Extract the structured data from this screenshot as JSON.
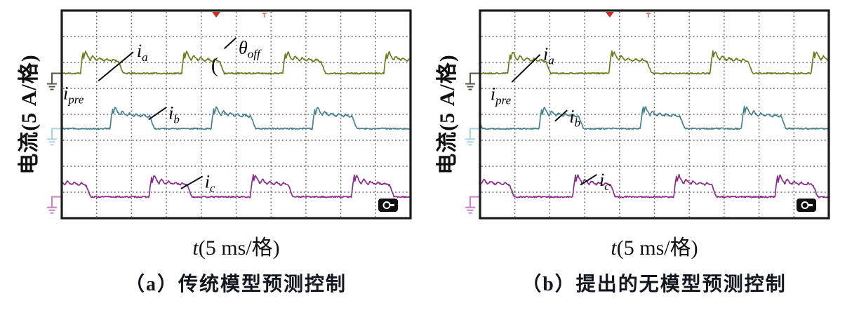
{
  "page": {
    "background": "#ffffff"
  },
  "panels": [
    {
      "y_label": "电流(5 A/格)",
      "x_label_t": "t",
      "x_label_units": "(5 ms/格)",
      "caption": "（a）传统模型预测控制"
    },
    {
      "y_label": "电流(5 A/格)",
      "x_label_t": "t",
      "x_label_units": "(5 ms/格)",
      "caption": "（b）提出的无模型预测控制"
    }
  ],
  "chart_data": [
    {
      "type": "line",
      "title": "（a）传统模型预测控制",
      "xlabel": "t(5 ms/格)",
      "ylabel": "电流(5 A/格)",
      "x_divisions": 10,
      "y_divisions": 8,
      "time_per_div_ms": 5,
      "current_per_div_A": 5,
      "grid": "dotted",
      "border_color": "#1b1b1b",
      "grid_color": "#4d4d4d",
      "trigger_marker_x_div": 4.43,
      "aux_marker_x_div": 5.81,
      "marker_color": "#c9301e",
      "series": [
        {
          "name": "i_a",
          "color": "#6e7b1f",
          "ground_color": "#55554a",
          "baseline_div": 2.42,
          "amplitude_div": 0.55,
          "overshoot_div": 0.34,
          "period_div": 2.9,
          "conduction_div": 1.0,
          "first_rise_div": 0.54,
          "ripple_period_div": 0.2,
          "seed": 11
        },
        {
          "name": "i_b",
          "color": "#47828f",
          "ground_color": "#a5d5e2",
          "baseline_div": 4.55,
          "amplitude_div": 0.55,
          "overshoot_div": 0.34,
          "period_div": 2.9,
          "conduction_div": 1.05,
          "first_rise_div": 1.39,
          "ripple_period_div": 0.2,
          "seed": 12
        },
        {
          "name": "i_c",
          "color": "#8e2d8e",
          "ground_color": "#cb7fc7",
          "baseline_div": 7.18,
          "amplitude_div": 0.55,
          "overshoot_div": 0.34,
          "period_div": 2.9,
          "conduction_div": 1.0,
          "first_rise_div": 2.51,
          "ripple_period_div": 0.2,
          "seed": 13
        }
      ],
      "annotations": [
        {
          "main": "i",
          "sub": "a",
          "x_div": 2.15,
          "y_div": 1.79,
          "line": [
            1.05,
            2.71,
            2.05,
            1.6
          ]
        },
        {
          "main": "i",
          "sub": "pre",
          "x_div": 0.04,
          "y_div": 3.42
        },
        {
          "main": "θ",
          "sub": "off",
          "x_div": 5.07,
          "y_div": 1.66,
          "line": [
            4.66,
            1.47,
            5.0,
            1.05
          ],
          "bracket_x_div": 4.28,
          "bracket_y_div": 2.36,
          "bracket_glyph": "("
        },
        {
          "main": "i",
          "sub": "b",
          "x_div": 3.06,
          "y_div": 4.17,
          "line": [
            2.49,
            4.2,
            3.0,
            3.73
          ]
        },
        {
          "main": "i",
          "sub": "c",
          "x_div": 4.1,
          "y_div": 6.83,
          "line": [
            3.42,
            6.86,
            4.04,
            6.39
          ]
        }
      ]
    },
    {
      "type": "line",
      "title": "（b）提出的无模型预测控制",
      "xlabel": "t(5 ms/格)",
      "ylabel": "电流(5 A/格)",
      "x_divisions": 10,
      "y_divisions": 8,
      "time_per_div_ms": 5,
      "current_per_div_A": 5,
      "grid": "dotted",
      "border_color": "#1b1b1b",
      "grid_color": "#4d4d4d",
      "trigger_marker_x_div": 3.72,
      "aux_marker_x_div": 4.83,
      "marker_color": "#c9301e",
      "series": [
        {
          "name": "i_a",
          "color": "#6e7b1f",
          "ground_color": "#55554a",
          "baseline_div": 2.42,
          "amplitude_div": 0.55,
          "overshoot_div": 0.34,
          "period_div": 2.9,
          "conduction_div": 1.0,
          "first_rise_div": 0.8,
          "ripple_period_div": 0.2,
          "seed": 21
        },
        {
          "name": "i_b",
          "color": "#47828f",
          "ground_color": "#a5d5e2",
          "baseline_div": 4.55,
          "amplitude_div": 0.55,
          "overshoot_div": 0.34,
          "period_div": 2.9,
          "conduction_div": 1.05,
          "first_rise_div": 1.7,
          "ripple_period_div": 0.2,
          "seed": 22
        },
        {
          "name": "i_c",
          "color": "#8e2d8e",
          "ground_color": "#cb7fc7",
          "baseline_div": 7.18,
          "amplitude_div": 0.55,
          "overshoot_div": 0.34,
          "period_div": 2.9,
          "conduction_div": 1.0,
          "first_rise_div": 2.66,
          "ripple_period_div": 0.2,
          "seed": 23
        }
      ],
      "annotations": [
        {
          "main": "i",
          "sub": "a",
          "x_div": 1.81,
          "y_div": 1.9,
          "line": [
            0.91,
            2.76,
            1.72,
            1.7
          ]
        },
        {
          "main": "i",
          "sub": "pre",
          "x_div": 0.3,
          "y_div": 3.44
        },
        {
          "main": "i",
          "sub": "b",
          "x_div": 2.56,
          "y_div": 4.31,
          "line": [
            2.15,
            4.26,
            2.5,
            3.84
          ]
        },
        {
          "main": "i",
          "sub": "c",
          "x_div": 3.42,
          "y_div": 6.75,
          "line": [
            2.88,
            6.72,
            3.35,
            6.32
          ]
        }
      ]
    }
  ]
}
